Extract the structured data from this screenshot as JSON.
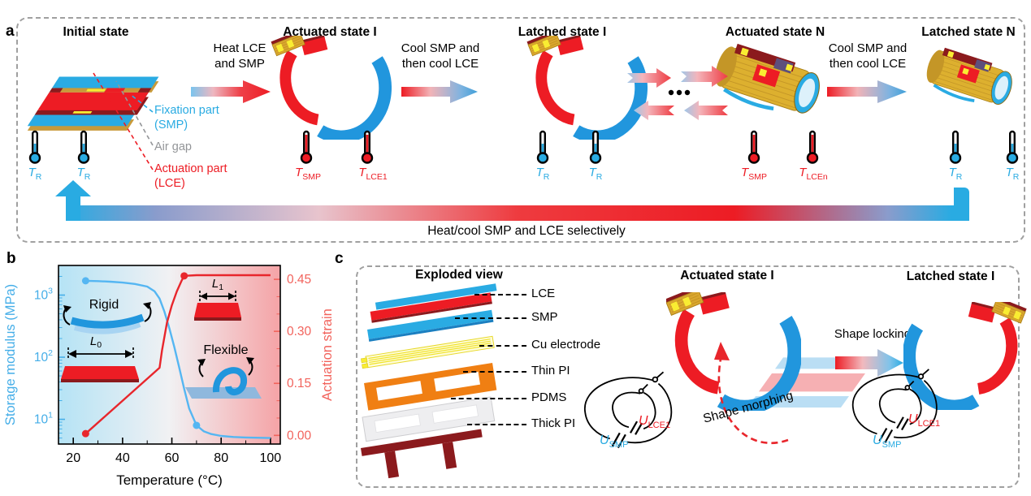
{
  "figure": {
    "panel_a": {
      "label": "a",
      "states": [
        {
          "title": "Initial state",
          "thermos": [
            {
              "m": "T",
              "s": "R",
              "hot": false
            },
            {
              "m": "T",
              "s": "R",
              "hot": false
            }
          ]
        },
        {
          "title": "Actuated state I",
          "thermos": [
            {
              "m": "T",
              "s": "SMP",
              "hot": true
            },
            {
              "m": "T",
              "s": "LCE1",
              "hot": true
            }
          ]
        },
        {
          "title": "Latched state I",
          "thermos": [
            {
              "m": "T",
              "s": "R",
              "hot": false
            },
            {
              "m": "T",
              "s": "R",
              "hot": false
            }
          ]
        },
        {
          "title": "Actuated state N",
          "thermos": [
            {
              "m": "T",
              "s": "SMP",
              "hot": true
            },
            {
              "m": "T",
              "s": "LCEn",
              "hot": true
            }
          ]
        },
        {
          "title": "Latched state N",
          "thermos": [
            {
              "m": "T",
              "s": "R",
              "hot": false
            },
            {
              "m": "T",
              "s": "R",
              "hot": false
            }
          ]
        }
      ],
      "transitions": [
        {
          "line1": "Heat LCE",
          "line2": "and SMP",
          "kind": "heat"
        },
        {
          "line1": "Cool SMP and",
          "line2": "then cool LCE",
          "kind": "cool"
        },
        {
          "line1": "Cool SMP and",
          "line2": "then cool LCE",
          "kind": "cool"
        }
      ],
      "legend": [
        {
          "line1": "Fixation part",
          "line2": "(SMP)",
          "color": "#29abe2"
        },
        {
          "line1": "Air gap",
          "line2": "",
          "color": "#939598"
        },
        {
          "line1": "Actuation part",
          "line2": "(LCE)",
          "color": "#ed1c24"
        }
      ],
      "cycle_label": "Heat/cool SMP and LCE selectively"
    },
    "panel_b": {
      "label": "b"
    },
    "panel_c": {
      "label": "c",
      "sections": [
        {
          "title": "Exploded view"
        },
        {
          "title": "Actuated state I"
        },
        {
          "title": "Latched state I"
        }
      ],
      "layers": [
        {
          "name": "LCE"
        },
        {
          "name": "SMP"
        },
        {
          "name": "Cu electrode"
        },
        {
          "name": "Thin PI"
        },
        {
          "name": "PDMS"
        },
        {
          "name": "Thick PI"
        }
      ],
      "shape_locking": "Shape locking",
      "shape_morphing": "Shape morphing",
      "voltage_smp": {
        "m": "U",
        "s": "SMP",
        "color": "#29abe2"
      },
      "voltage_lce": {
        "m": "U",
        "s": "LCE1",
        "color": "#ed1c24"
      }
    },
    "colors": {
      "blue": "#29abe2",
      "red": "#ed1c24",
      "maroon": "#8b1a1d",
      "gold": "#d9a62e",
      "yellow": "#f9ed32",
      "orange": "#f07f13",
      "gray": "#939598"
    }
  },
  "chart_data": {
    "type": "line",
    "title": "",
    "xlabel": "Temperature (°C)",
    "x_ticks": [
      20,
      40,
      60,
      80,
      100
    ],
    "x_minor_step": 10,
    "xlim": [
      14,
      104
    ],
    "grid": false,
    "legend_position": "none",
    "axes": {
      "left": {
        "label": "Storage modulus (MPa)",
        "scale": "log",
        "ticks": [
          10,
          100,
          1000
        ],
        "lim": [
          4,
          3000
        ],
        "color": "#45aee8"
      },
      "right": {
        "label": "Actuation strain",
        "scale": "linear",
        "ticks": [
          {
            "v": 0,
            "t": "0.00"
          },
          {
            "v": 0.15,
            "t": "0.15"
          },
          {
            "v": 0.3,
            "t": "0.30"
          },
          {
            "v": 0.45,
            "t": "0.45"
          }
        ],
        "minor_step": 0.05,
        "lim": [
          -0.025,
          0.49
        ],
        "color": "#f2635c"
      }
    },
    "series": [
      {
        "name": "Storage modulus",
        "axis": "left",
        "color": "#55b6f2",
        "points": [
          [
            25,
            1700
          ],
          [
            30,
            1680
          ],
          [
            35,
            1645
          ],
          [
            40,
            1590
          ],
          [
            45,
            1510
          ],
          [
            50,
            1370
          ],
          [
            53,
            1150
          ],
          [
            55,
            880
          ],
          [
            57,
            540
          ],
          [
            59,
            290
          ],
          [
            61,
            145
          ],
          [
            63,
            68
          ],
          [
            65,
            31
          ],
          [
            67,
            15
          ],
          [
            70,
            8
          ],
          [
            73,
            6.4
          ],
          [
            76,
            5.8
          ],
          [
            80,
            5.4
          ],
          [
            85,
            5.2
          ],
          [
            90,
            5.1
          ],
          [
            100,
            5
          ]
        ],
        "markers": [
          [
            25,
            1700
          ],
          [
            70,
            8
          ]
        ]
      },
      {
        "name": "Actuation strain",
        "axis": "right",
        "color": "#e8262c",
        "points": [
          [
            25,
            0.005
          ],
          [
            40,
            0.1
          ],
          [
            55,
            0.195
          ],
          [
            56,
            0.245
          ],
          [
            58,
            0.325
          ],
          [
            60,
            0.375
          ],
          [
            62,
            0.415
          ],
          [
            64,
            0.447
          ],
          [
            65,
            0.46
          ],
          [
            70,
            0.462
          ],
          [
            80,
            0.462
          ],
          [
            90,
            0.462
          ],
          [
            100,
            0.462
          ]
        ],
        "markers": [
          [
            25,
            0.005
          ],
          [
            65,
            0.46
          ]
        ]
      }
    ],
    "annotations": {
      "rigid": "Rigid",
      "flexible": "Flexible",
      "l0": {
        "m": "L",
        "s": "0"
      },
      "l1": {
        "m": "L",
        "s": "1"
      }
    },
    "plot_bg_gradient": [
      "#b5e3f5",
      "#f1f1f3",
      "#f5a3a6"
    ]
  }
}
